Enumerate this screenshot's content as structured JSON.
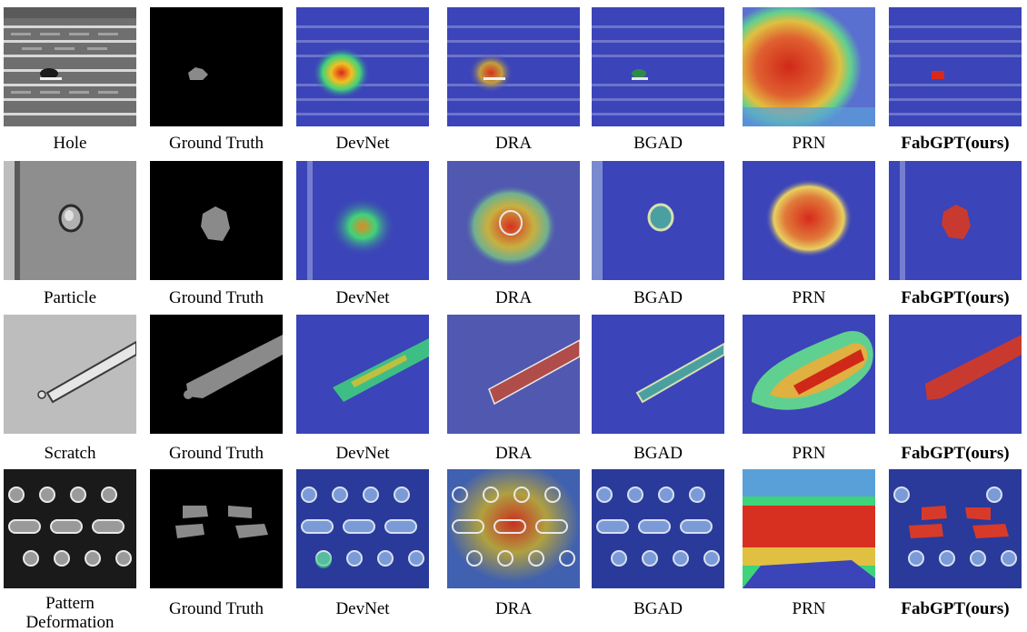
{
  "rows": [
    {
      "defect": "Hole",
      "labels": [
        "Hole",
        "Ground Truth",
        "DevNet",
        "DRA",
        "BGAD",
        "PRN",
        "FabGPT(ours)"
      ]
    },
    {
      "defect": "Particle",
      "labels": [
        "Particle",
        "Ground Truth",
        "DevNet",
        "DRA",
        "BGAD",
        "PRN",
        "FabGPT(ours)"
      ]
    },
    {
      "defect": "Scratch",
      "labels": [
        "Scratch",
        "Ground Truth",
        "DevNet",
        "DRA",
        "BGAD",
        "PRN",
        "FabGPT(ours)"
      ]
    },
    {
      "defect": "Pattern Deformation",
      "labels": [
        "Pattern\nDeformation",
        "Ground Truth",
        "DevNet",
        "DRA",
        "BGAD",
        "PRN",
        "FabGPT(ours)"
      ]
    }
  ],
  "columns": [
    "input",
    "ground-truth",
    "devnet",
    "dra",
    "bgad",
    "prn",
    "fabgpt"
  ],
  "colors": {
    "heat_low": "#2a2aa0",
    "heat_mid": "#3fd37a",
    "heat_high": "#e0241a",
    "mask_gray": "#8a8a8a"
  }
}
